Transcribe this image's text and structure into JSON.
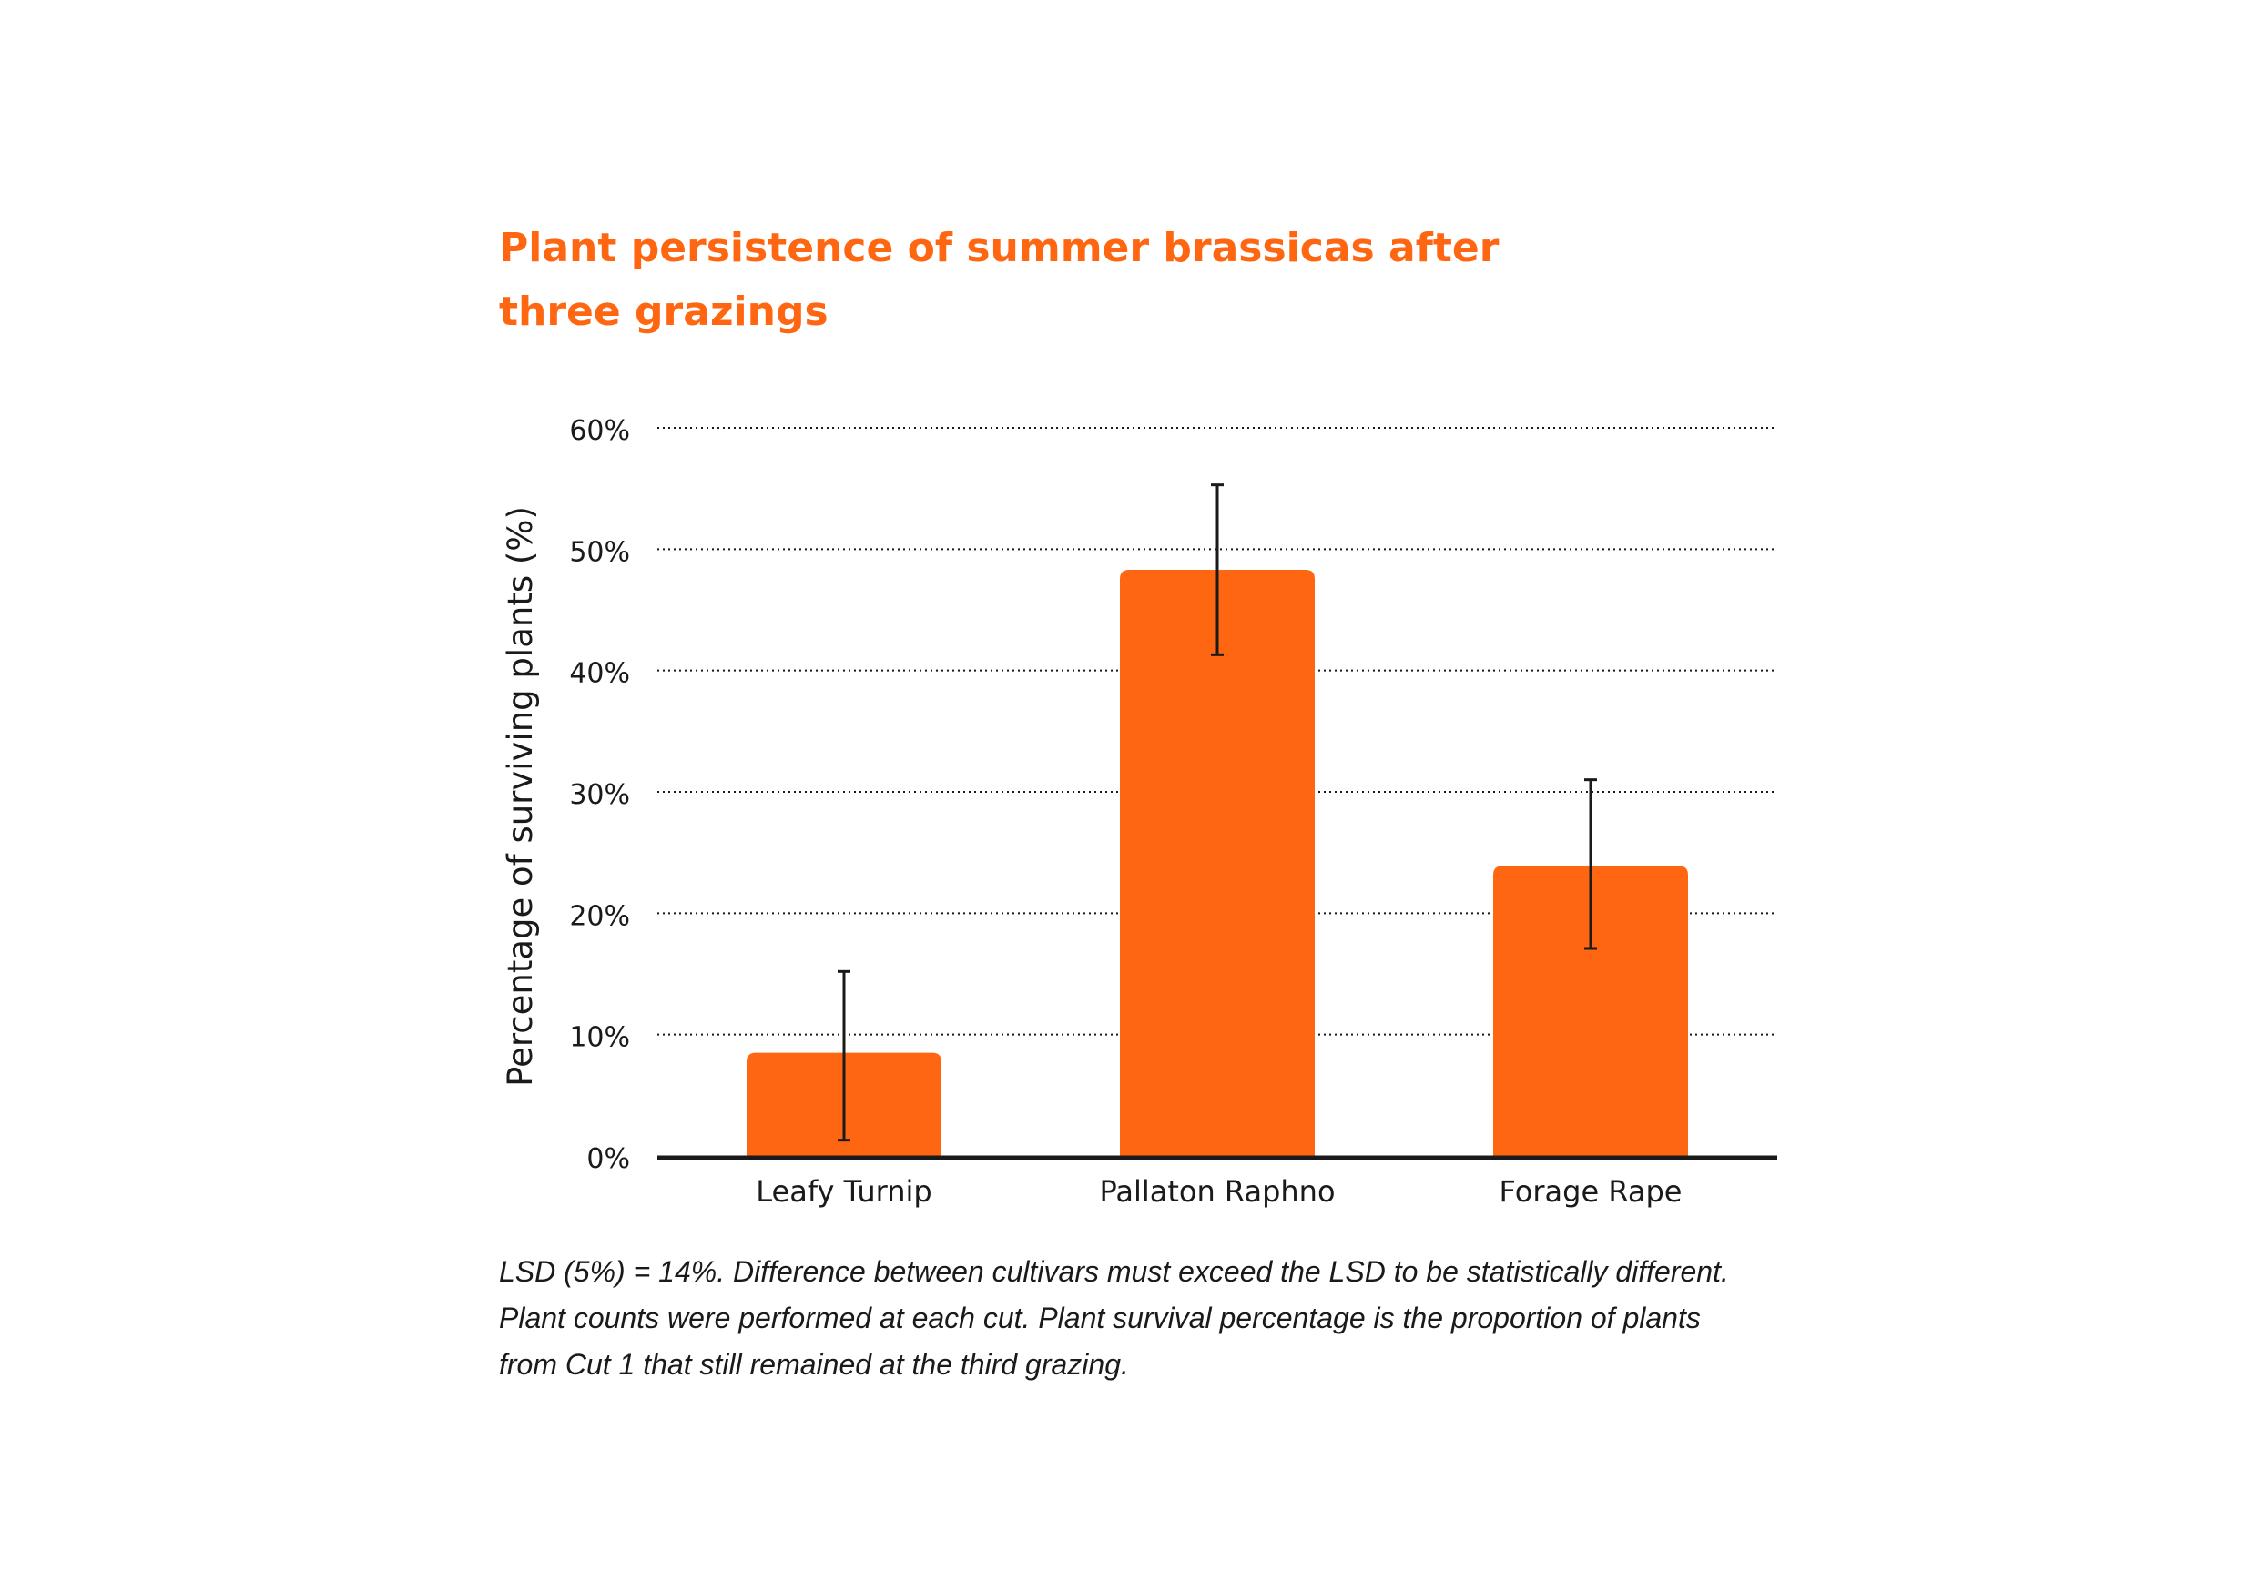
{
  "chart_data": {
    "type": "bar",
    "title": "Plant persistence of summer brassicas after three grazings",
    "title_lines": [
      "Plant persistence of summer brassicas after",
      "three grazings"
    ],
    "ylabel": "Percentage of surviving plants (%)",
    "xlabel": "",
    "categories": [
      "Leafy Turnip",
      "Pallaton Raphno",
      "Forage Rape"
    ],
    "values": [
      8.5,
      48.3,
      23.9
    ],
    "error_low": [
      1.3,
      41.3,
      17.1
    ],
    "error_high": [
      15.2,
      55.3,
      31.0
    ],
    "ylim": [
      0,
      60
    ],
    "yticks": [
      0,
      10,
      20,
      30,
      40,
      50,
      60
    ],
    "ytick_labels": [
      "0%",
      "10%",
      "20%",
      "30%",
      "40%",
      "50%",
      "60%"
    ],
    "grid": "dotted horizontal",
    "bar_color": "#FF6611",
    "title_color": "#FF6611",
    "text_color": "#1a1a1a"
  },
  "footnote": {
    "lines": [
      "LSD (5%) = 14%. Difference between cultivars must exceed the LSD to be statistically different.",
      "Plant counts were performed at each cut. Plant survival percentage is the proportion of plants",
      "from Cut 1 that still remained at the third grazing."
    ]
  }
}
